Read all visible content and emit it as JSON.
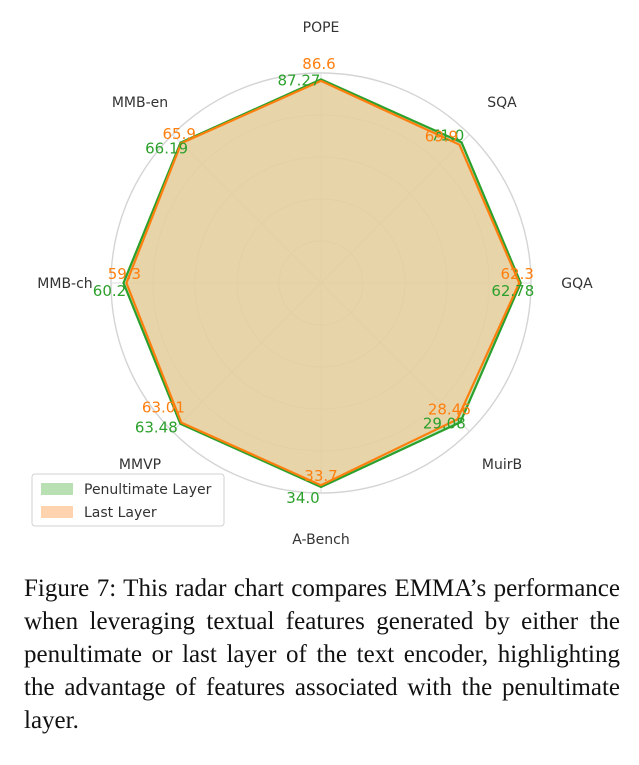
{
  "chart_data": {
    "type": "radar",
    "axes": [
      "POPE",
      "SQA",
      "GQA",
      "MuirB",
      "A-Bench",
      "MMVP",
      "MMB-ch",
      "MMB-en"
    ],
    "series": [
      {
        "name": "Penultimate Layer",
        "values": [
          87.27,
          71.0,
          62.78,
          29.08,
          34.0,
          63.48,
          60.2,
          66.19
        ],
        "labels": [
          "87.27",
          "71.0",
          "62.78",
          "29.08",
          "34.0",
          "63.48",
          "60.2",
          "66.19"
        ],
        "line_color": "#2ca02c",
        "fill_color": "#a6d8a0"
      },
      {
        "name": "Last Layer",
        "values": [
          86.6,
          69.9,
          62.3,
          28.46,
          33.7,
          63.01,
          59.3,
          65.9
        ],
        "labels": [
          "86.6",
          "69.9",
          "62.3",
          "28.46",
          "33.7",
          "63.01",
          "59.3",
          "65.9"
        ],
        "line_color": "#ff7f0e",
        "fill_color": "#ffc89a"
      }
    ],
    "normalization": {
      "POPE": [
        0,
        90
      ],
      "SQA": [
        0,
        75
      ],
      "GQA": [
        0,
        66
      ],
      "MuirB": [
        0,
        31
      ],
      "A-Bench": [
        0,
        35
      ],
      "MMVP": [
        0,
        67
      ],
      "MMB-ch": [
        0,
        64
      ],
      "MMB-en": [
        0,
        70
      ]
    },
    "grid_rings": 5,
    "legend_position": "bottom-left",
    "title": ""
  },
  "caption": "Figure 7: This radar chart compares EMMA’s performance when leveraging textual features generated by either the penultimate or last layer of the text encoder, highlighting the advantage of features associated with the penultimate layer."
}
